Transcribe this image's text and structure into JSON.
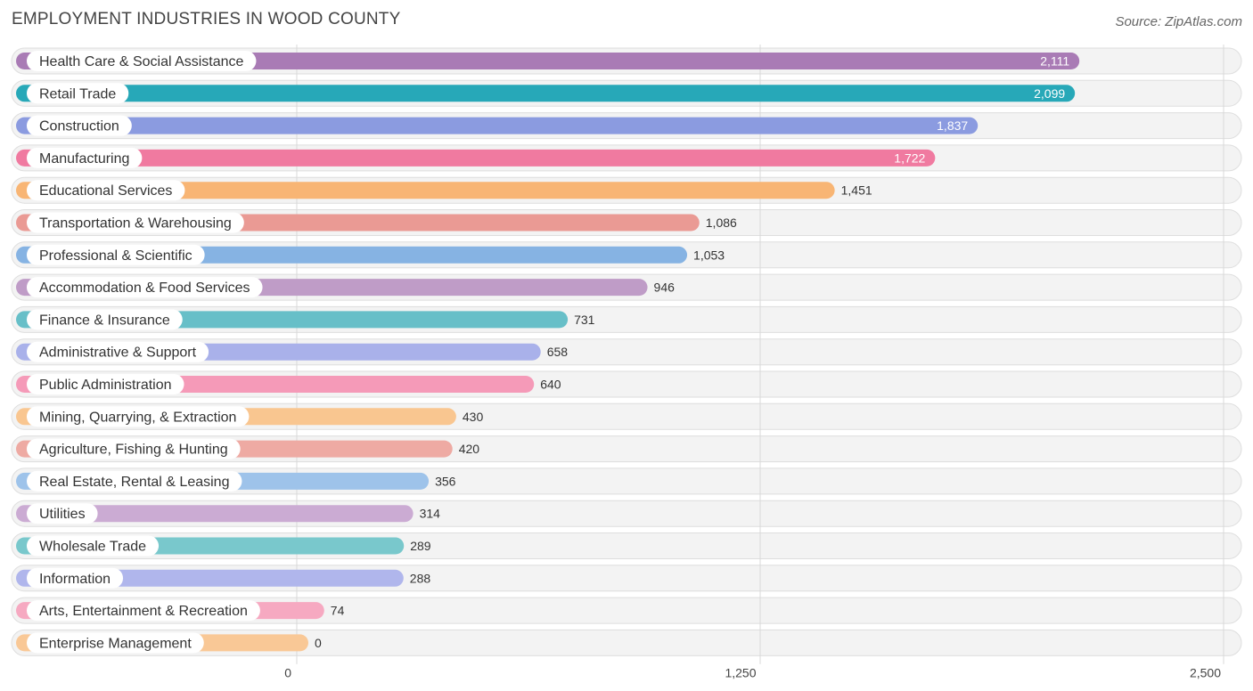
{
  "title": "EMPLOYMENT INDUSTRIES IN WOOD COUNTY",
  "source": "Source: ZipAtlas.com",
  "chart_data": {
    "type": "bar",
    "orientation": "horizontal",
    "title": "EMPLOYMENT INDUSTRIES IN WOOD COUNTY",
    "xlabel": "",
    "ylabel": "",
    "xlim": [
      0,
      2500
    ],
    "ticks": [
      0,
      1250,
      2500
    ],
    "tick_labels": [
      "0",
      "1,250",
      "2,500"
    ],
    "grid": true,
    "legend": "none",
    "categories": [
      "Health Care & Social Assistance",
      "Retail Trade",
      "Construction",
      "Manufacturing",
      "Educational Services",
      "Transportation & Warehousing",
      "Professional & Scientific",
      "Accommodation & Food Services",
      "Finance & Insurance",
      "Administrative & Support",
      "Public Administration",
      "Mining, Quarrying, & Extraction",
      "Agriculture, Fishing & Hunting",
      "Real Estate, Rental & Leasing",
      "Utilities",
      "Wholesale Trade",
      "Information",
      "Arts, Entertainment & Recreation",
      "Enterprise Management"
    ],
    "values": [
      2111,
      2099,
      1837,
      1722,
      1451,
      1086,
      1053,
      946,
      731,
      658,
      640,
      430,
      420,
      356,
      314,
      289,
      288,
      74,
      0
    ],
    "value_labels": [
      "2,111",
      "2,099",
      "1,837",
      "1,722",
      "1,451",
      "1,086",
      "1,053",
      "946",
      "731",
      "658",
      "640",
      "430",
      "420",
      "356",
      "314",
      "289",
      "288",
      "74",
      "0"
    ],
    "colors": [
      "#a97bb5",
      "#27a8b8",
      "#8b9be0",
      "#f07aa0",
      "#f8b574",
      "#ea9a94",
      "#86b3e3",
      "#bf9cc7",
      "#67bfc8",
      "#a9b1ea",
      "#f59ab8",
      "#f9c690",
      "#eeaaa3",
      "#9ec3ea",
      "#cbabd3",
      "#79c8cc",
      "#b0b6ec",
      "#f6a9c1",
      "#f9c896"
    ]
  }
}
